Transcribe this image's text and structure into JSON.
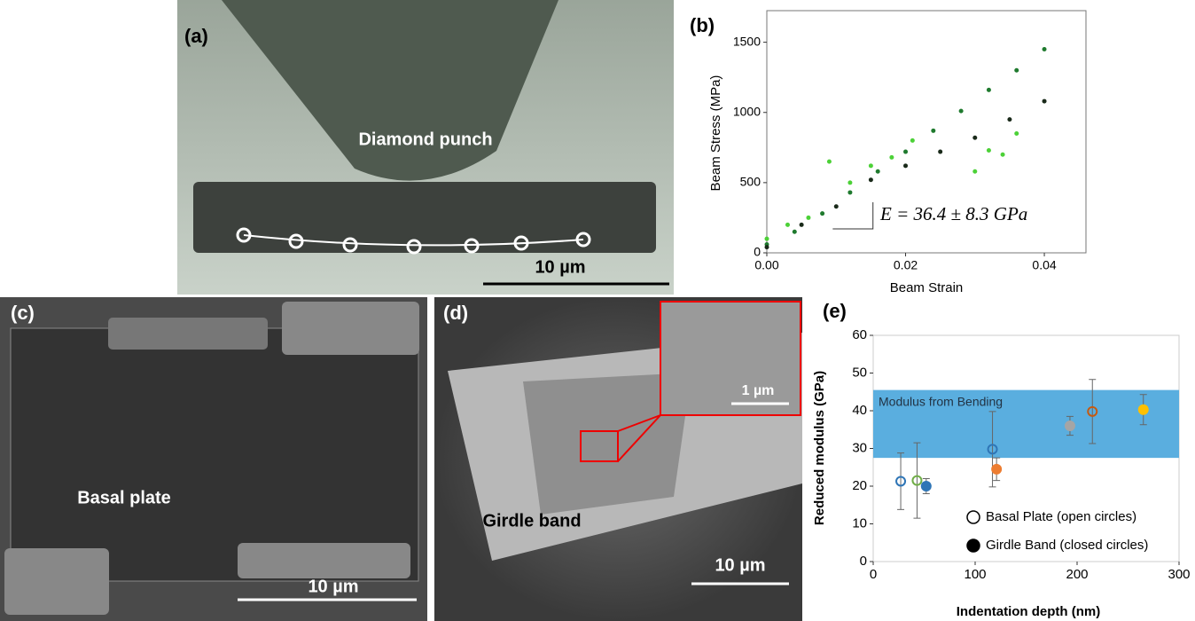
{
  "panels": {
    "a": {
      "label": "(a)",
      "caption": "Diamond punch",
      "scale": "10 µm"
    },
    "c": {
      "label": "(c)",
      "caption": "Basal plate",
      "scale": "10 µm"
    },
    "d": {
      "label": "(d)",
      "caption": "Girdle band",
      "scale": "10 µm",
      "inset_scale": "1 µm"
    }
  },
  "chart_data": [
    {
      "type": "scatter",
      "panel_label": "(b)",
      "x_label": "Beam Strain",
      "y_label": "Beam Stress (MPa)",
      "annotation": "E = 36.4 ± 8.3 GPa",
      "xlim": [
        0,
        0.046
      ],
      "ylim": [
        0,
        1725
      ],
      "xticks": [
        {
          "value": 0,
          "label": "0.00"
        },
        {
          "value": 0.02,
          "label": "0.02"
        },
        {
          "value": 0.04,
          "label": "0.04"
        }
      ],
      "yticks": [
        0,
        500,
        1000,
        1500
      ],
      "series": [
        {
          "color": "#1f7a2e",
          "x": [
            0,
            0.004,
            0.008,
            0.012,
            0.016,
            0.02,
            0.024,
            0.028,
            0.032,
            0.036,
            0.04
          ],
          "values": [
            60,
            150,
            280,
            430,
            580,
            720,
            870,
            1010,
            1160,
            1300,
            1450
          ]
        },
        {
          "color": "#1a2a1a",
          "x": [
            0,
            0.005,
            0.01,
            0.015,
            0.02,
            0.025,
            0.03,
            0.035,
            0.04
          ],
          "values": [
            40,
            200,
            330,
            520,
            620,
            720,
            820,
            950,
            1080
          ]
        },
        {
          "color": "#4cd137",
          "x": [
            0,
            0.003,
            0.006,
            0.009,
            0.012,
            0.015,
            0.018,
            0.021,
            0.03,
            0.032,
            0.034,
            0.036
          ],
          "values": [
            100,
            200,
            250,
            650,
            500,
            620,
            680,
            800,
            580,
            730,
            700,
            850
          ]
        }
      ]
    },
    {
      "type": "errorbar",
      "panel_label": "(e)",
      "x_label": "Indentation depth (nm)",
      "y_label": "Reduced modulus (GPa)",
      "xlim": [
        0,
        300
      ],
      "ylim": [
        0,
        60
      ],
      "xticks": [
        0,
        100,
        200,
        300
      ],
      "yticks": [
        0,
        10,
        20,
        30,
        40,
        50,
        60
      ],
      "band": {
        "from": 27.5,
        "to": 45.5,
        "label": "Modulus from Bending",
        "color": "#5aaedf"
      },
      "series": [
        {
          "name": "Basal Plate (open circles)",
          "marker": "open",
          "x": [
            27,
            43,
            117,
            215
          ],
          "values": [
            21.3,
            21.5,
            29.8,
            39.8
          ],
          "errors": [
            7.5,
            10,
            10,
            8.5
          ],
          "colors": [
            "#2e75b6",
            "#70ad47",
            "#2e75b6",
            "#c55a11"
          ]
        },
        {
          "name": "Girdle Band (closed circles)",
          "marker": "closed",
          "x": [
            52,
            121,
            193,
            265
          ],
          "values": [
            20,
            24.5,
            36,
            40.3
          ],
          "errors": [
            2,
            3,
            2.5,
            4
          ],
          "colors": [
            "#2e75b6",
            "#ed7d31",
            "#a5a5a5",
            "#ffc000"
          ]
        }
      ]
    }
  ]
}
